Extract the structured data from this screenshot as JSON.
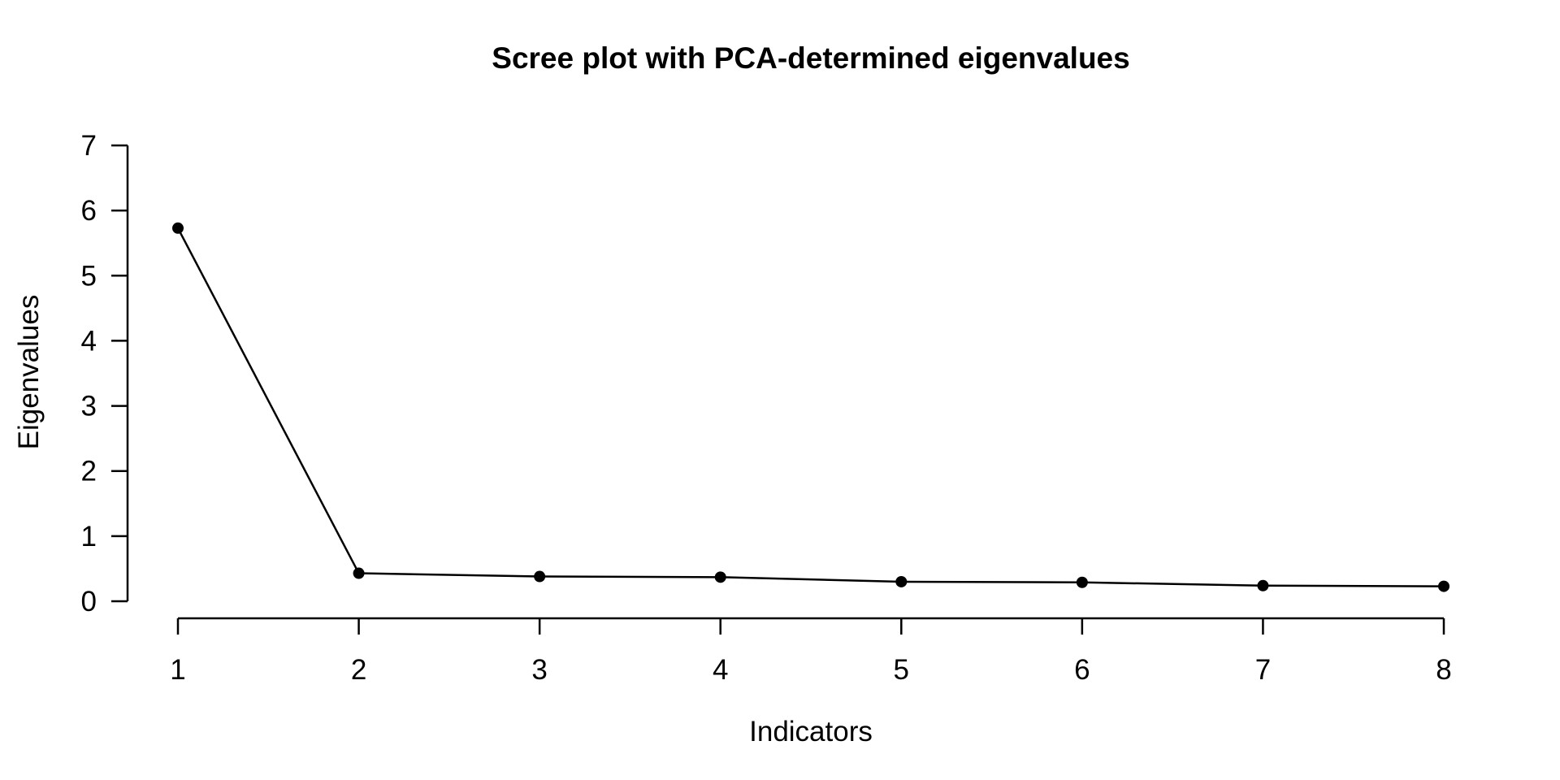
{
  "chart_data": {
    "type": "line",
    "title": "Scree plot with PCA-determined eigenvalues",
    "xlabel": "Indicators",
    "ylabel": "Eigenvalues",
    "x": [
      1,
      2,
      3,
      4,
      5,
      6,
      7,
      8
    ],
    "values": [
      5.73,
      0.43,
      0.38,
      0.37,
      0.3,
      0.29,
      0.24,
      0.23
    ],
    "series_name": "Eigenvalues",
    "xlim": [
      1,
      8
    ],
    "ylim": [
      0,
      7
    ],
    "xticks": [
      1,
      2,
      3,
      4,
      5,
      6,
      7,
      8
    ],
    "yticks": [
      0,
      1,
      2,
      3,
      4,
      5,
      6,
      7
    ],
    "marker": "filled-circle",
    "grid": false,
    "legend_position": "none",
    "line_color": "#000000",
    "marker_color": "#000000",
    "axis_color": "#000000",
    "text_color": "#000000",
    "background_color": "#ffffff"
  }
}
